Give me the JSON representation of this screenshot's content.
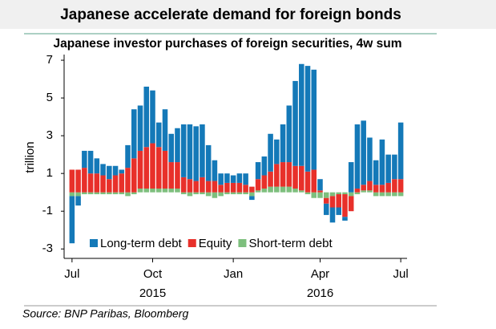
{
  "chart_data": {
    "type": "stacked_bar",
    "title": "Japanese accelerate demand for foreign bonds",
    "subtitle": "Japanese investor purchases of foreign securities, 4w sum",
    "y_label": "trillion",
    "source": "Source:  BNP Paribas, Bloomberg",
    "categories": [
      "Jul",
      null,
      null,
      null,
      null,
      null,
      null,
      null,
      null,
      null,
      null,
      null,
      null,
      "Oct",
      null,
      null,
      null,
      null,
      null,
      null,
      null,
      null,
      null,
      null,
      null,
      null,
      "Jan",
      null,
      null,
      null,
      null,
      null,
      null,
      null,
      null,
      null,
      null,
      null,
      null,
      null,
      "Apr",
      null,
      null,
      null,
      null,
      null,
      null,
      null,
      null,
      null,
      null,
      null,
      null,
      "Jul"
    ],
    "years": [
      null,
      null,
      null,
      null,
      null,
      null,
      null,
      null,
      null,
      null,
      null,
      null,
      null,
      "2015",
      null,
      null,
      null,
      null,
      null,
      null,
      null,
      null,
      null,
      null,
      null,
      null,
      null,
      null,
      null,
      null,
      null,
      null,
      null,
      null,
      null,
      null,
      null,
      null,
      null,
      null,
      "2016",
      null,
      null,
      null,
      null,
      null,
      null,
      null,
      null,
      null,
      null,
      null,
      null,
      null
    ],
    "series": [
      {
        "name": "Short-term debt",
        "color": "#7dbf7d",
        "values": [
          -0.2,
          -0.2,
          -0.1,
          -0.1,
          -0.1,
          -0.1,
          -0.1,
          -0.1,
          -0.1,
          -0.2,
          -0.1,
          0.2,
          0.2,
          0.2,
          0.2,
          0.2,
          0.2,
          0.2,
          -0.1,
          -0.2,
          -0.1,
          -0.1,
          -0.2,
          -0.3,
          -0.2,
          -0.1,
          -0.1,
          -0.1,
          -0.1,
          -0.2,
          0.1,
          0.2,
          0.3,
          0.3,
          0.3,
          0.3,
          0.2,
          0.1,
          -0.1,
          -0.3,
          -0.3,
          -0.3,
          -0.2,
          -0.1,
          -0.1,
          -0.2,
          -0.1,
          0.1,
          0.1,
          -0.2,
          -0.2,
          -0.2,
          -0.2,
          -0.2
        ]
      },
      {
        "name": "Equity",
        "color": "#e8302a",
        "values": [
          1.2,
          1.2,
          1.3,
          1.0,
          1.0,
          0.9,
          0.7,
          0.9,
          1.0,
          1.3,
          1.8,
          2.0,
          2.2,
          2.4,
          2.2,
          2.0,
          1.4,
          1.4,
          0.8,
          0.7,
          0.6,
          0.8,
          0.6,
          0.6,
          0.4,
          0.5,
          0.5,
          0.5,
          0.4,
          0.3,
          0.6,
          0.7,
          0.8,
          1.2,
          1.3,
          1.3,
          1.2,
          1.3,
          1.1,
          1.2,
          0.1,
          -0.3,
          -0.6,
          -0.7,
          -1.2,
          -0.8,
          0.2,
          0.3,
          0.5,
          0.4,
          0.4,
          0.5,
          0.7,
          0.7
        ]
      },
      {
        "name": "Long-term debt",
        "color": "#1479b8",
        "values": [
          -2.5,
          -0.5,
          0.9,
          1.2,
          0.8,
          0.6,
          0.7,
          0.5,
          0.2,
          1.2,
          2.6,
          2.4,
          3.2,
          2.8,
          1.3,
          2.2,
          1.5,
          1.8,
          2.8,
          2.9,
          2.9,
          2.8,
          1.9,
          1.1,
          0.6,
          0.5,
          0.4,
          0.5,
          0.6,
          -0.2,
          0.9,
          1.0,
          2.0,
          1.3,
          2.0,
          3.0,
          4.5,
          5.4,
          5.6,
          5.3,
          0.6,
          -0.6,
          -0.8,
          -0.4,
          -0.2,
          1.6,
          3.4,
          3.4,
          2.3,
          1.3,
          2.4,
          1.5,
          1.3,
          3.0
        ]
      }
    ],
    "legend_order": [
      2,
      1,
      0
    ],
    "ylim": [
      -3.5,
      7.3
    ],
    "yticks": [
      -3,
      -1,
      1,
      3,
      5,
      7
    ]
  }
}
